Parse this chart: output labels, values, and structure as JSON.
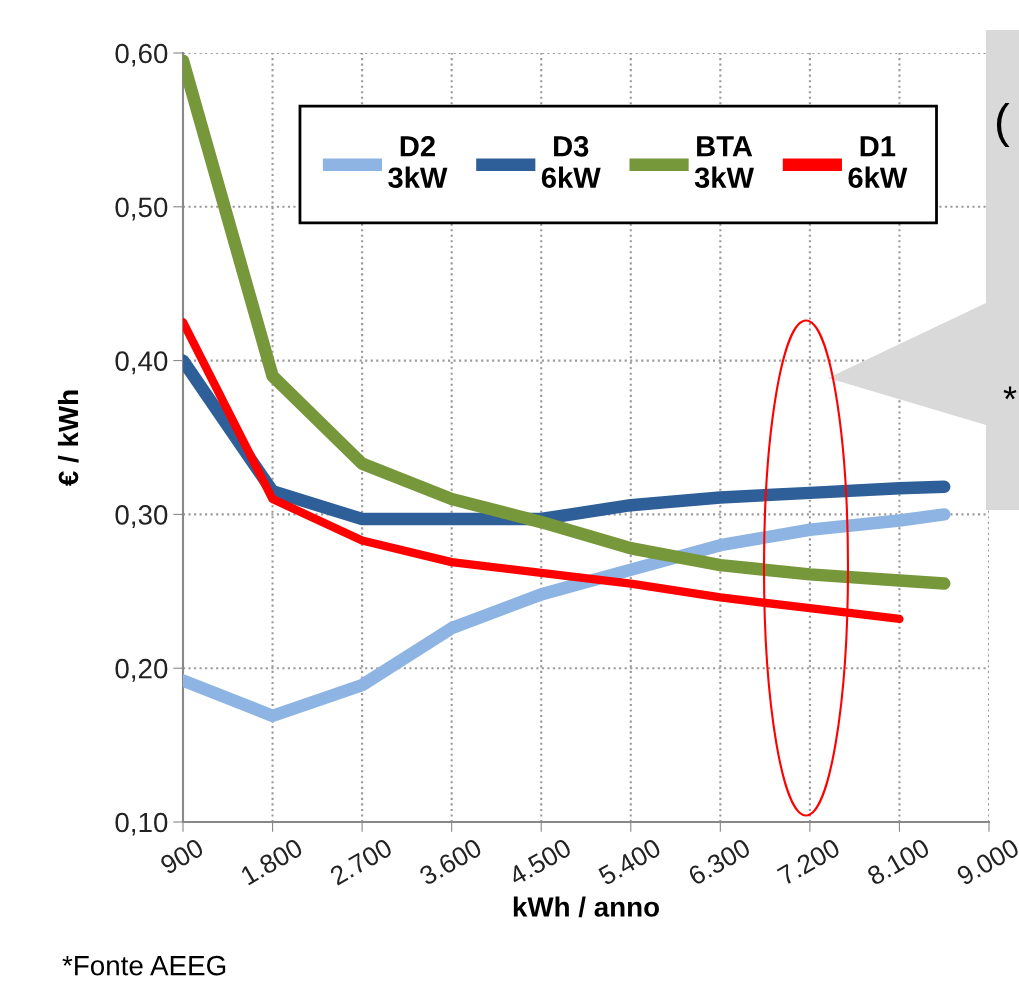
{
  "chart_data": {
    "type": "line",
    "xlabel": "kWh / anno",
    "ylabel": "€ / kWh",
    "x": [
      900,
      1800,
      2700,
      3600,
      4500,
      5400,
      6300,
      7200,
      8100,
      8550
    ],
    "series": [
      {
        "name": "D2\n3kW",
        "color": "#8db4e2",
        "values": [
          0.192,
          0.169,
          0.189,
          0.226,
          0.248,
          0.264,
          0.28,
          0.29,
          0.296,
          0.3
        ]
      },
      {
        "name": "D3\n6kW",
        "color": "#2f5f98",
        "values": [
          0.4,
          0.315,
          0.297,
          0.297,
          0.297,
          0.306,
          0.311,
          0.314,
          0.317,
          0.318
        ]
      },
      {
        "name": "BTA\n3kW",
        "color": "#76973a",
        "values": [
          0.595,
          0.39,
          0.333,
          0.31,
          0.295,
          0.278,
          0.267,
          0.261,
          0.257,
          0.255
        ]
      },
      {
        "name": "D1\n6kW",
        "color": "#ff0000",
        "values": [
          0.425,
          0.31,
          0.283,
          0.269,
          0.262,
          0.255,
          0.246,
          0.239,
          0.232,
          null
        ]
      }
    ],
    "xlim": [
      900,
      9000
    ],
    "xticks": [
      900,
      {
        "value": 1800,
        "label": "1.800"
      },
      {
        "value": 2700,
        "label": "2.700"
      },
      {
        "value": 3600,
        "label": "3.600"
      },
      {
        "value": 4500,
        "label": "4.500"
      },
      {
        "value": 5400,
        "label": "5.400"
      },
      {
        "value": 6300,
        "label": "6.300"
      },
      {
        "value": 7200,
        "label": "7.200"
      },
      {
        "value": 8100,
        "label": "8.100"
      },
      {
        "value": 9000,
        "label": "9.000"
      }
    ],
    "ylim": [
      0.1,
      0.6
    ],
    "yticks": [
      {
        "value": 0.1,
        "label": "0,10"
      },
      {
        "value": 0.2,
        "label": "0,20"
      },
      {
        "value": 0.3,
        "label": "0,30"
      },
      {
        "value": 0.4,
        "label": "0,40"
      },
      {
        "value": 0.5,
        "label": "0,50"
      },
      {
        "value": 0.6,
        "label": "0,60"
      }
    ],
    "grid": true,
    "legend": "top",
    "marker": "none",
    "line_style": "solid",
    "annotations": [
      "*Fonte AEEG",
      "(",
      "*"
    ]
  }
}
